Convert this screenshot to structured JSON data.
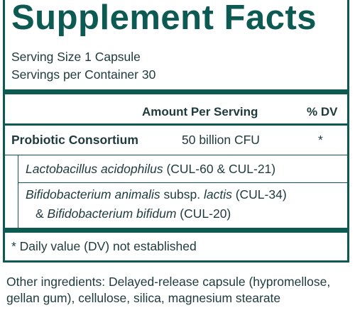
{
  "panel": {
    "title": "Supplement Facts",
    "serving_size": "Serving Size 1 Capsule",
    "servings_per_container": "Servings per Container 30"
  },
  "table": {
    "header_amount": "Amount Per Serving",
    "header_dv": "% DV",
    "row_name": "Probiotic Consortium",
    "row_amount": "50 billion CFU",
    "row_dv": "*",
    "strain1_name": "Lactobacillus acidophilus",
    "strain1_code": " (CUL-60 & CUL-21)",
    "strain2_name": "Bifidobacterium animalis",
    "strain2_subsp": " subsp. ",
    "strain2_variety": "lactis",
    "strain2_code": " (CUL-34)",
    "strain3_prefix": "& ",
    "strain3_name": "Bifidobacterium bifidum",
    "strain3_code": " (CUL-20)",
    "footnote": "* Daily value (DV) not established"
  },
  "other_ingredients": "Other ingredients: Delayed-release capsule (hypromellose, gellan gum), cellulose, silica, magnesium stearate",
  "colors": {
    "brand_green": "#0d5a53",
    "text": "#1e3a3c"
  }
}
